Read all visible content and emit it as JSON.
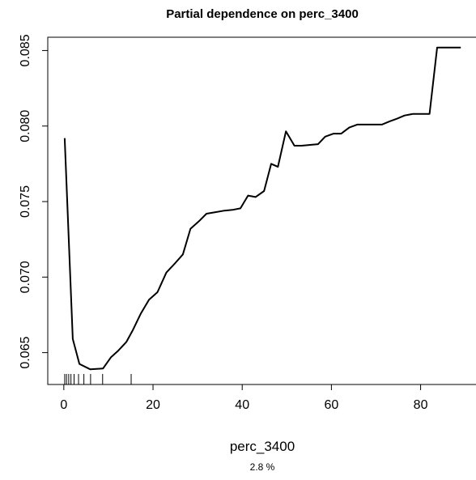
{
  "chart_data": {
    "type": "line",
    "title": "Partial dependence on perc_3400",
    "xlabel": "perc_3400",
    "ylabel": "",
    "footnote": "2.8 %",
    "xlim": [
      -3.6,
      92.6
    ],
    "ylim": [
      0.06289,
      0.08588
    ],
    "grid": false,
    "legend": "none",
    "x_ticks": [
      0,
      20,
      40,
      60,
      80
    ],
    "y_ticks": [
      0.065,
      0.07,
      0.075,
      0.08,
      0.085
    ],
    "x_tick_labels": [
      "0",
      "20",
      "40",
      "60",
      "80"
    ],
    "y_tick_labels": [
      "0.065",
      "0.070",
      "0.075",
      "0.080",
      "0.085"
    ],
    "series": [
      {
        "x": [
          0.2,
          2.0,
          3.5,
          5.9,
          8.8,
          10.6,
          12.1,
          14.0,
          15.5,
          17.3,
          19.1,
          21.0,
          23.0,
          24.9,
          26.7,
          28.4,
          30.3,
          32.0,
          34.0,
          36.0,
          37.8,
          39.6,
          41.3,
          43.0,
          44.9,
          46.5,
          48.0,
          49.8,
          51.7,
          53.3,
          55.2,
          57.0,
          58.6,
          60.5,
          62.2,
          64.0,
          65.8,
          67.6,
          69.5,
          71.3,
          73.0,
          74.8,
          76.4,
          78.2,
          80.1,
          82.0,
          83.7,
          85.6,
          87.2,
          89.0
        ],
        "y": [
          0.0792,
          0.0659,
          0.06425,
          0.0639,
          0.06395,
          0.0647,
          0.0651,
          0.0657,
          0.0665,
          0.0676,
          0.0685,
          0.069,
          0.0703,
          0.0709,
          0.0715,
          0.0732,
          0.0737,
          0.0742,
          0.0743,
          0.0744,
          0.07445,
          0.07455,
          0.0754,
          0.0753,
          0.0757,
          0.0775,
          0.0773,
          0.07965,
          0.0787,
          0.0787,
          0.07875,
          0.0788,
          0.0793,
          0.0795,
          0.0795,
          0.0799,
          0.0801,
          0.0801,
          0.0801,
          0.0801,
          0.0803,
          0.0805,
          0.0807,
          0.0808,
          0.0808,
          0.0808,
          0.0852,
          0.0852,
          0.0852,
          0.0852
        ]
      }
    ],
    "rug": [
      0.2,
      0.6,
      1.1,
      1.6,
      2.3,
      3.3,
      4.5,
      6.0,
      8.7,
      15.1
    ]
  }
}
